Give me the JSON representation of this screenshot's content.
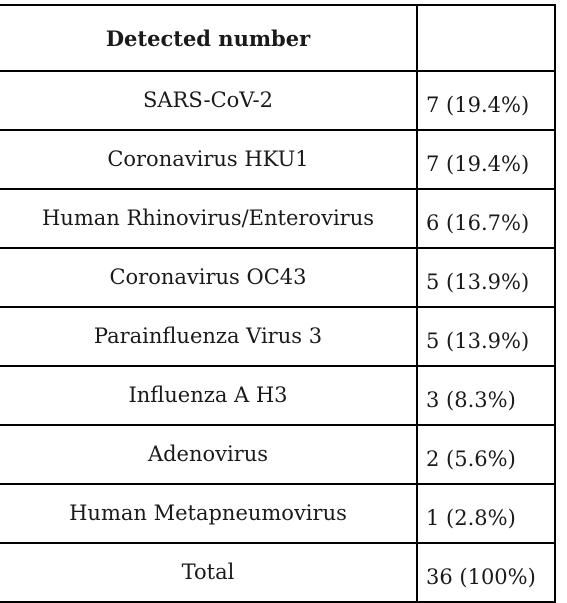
{
  "table": {
    "header": {
      "label": "Detected number",
      "value": ""
    },
    "rows": [
      {
        "name": "SARS-CoV-2",
        "count": "7 (19.4%)"
      },
      {
        "name": "Coronavirus HKU1",
        "count": "7 (19.4%)"
      },
      {
        "name": "Human Rhinovirus/Enterovirus",
        "count": "6 (16.7%)"
      },
      {
        "name": "Coronavirus OC43",
        "count": "5 (13.9%)"
      },
      {
        "name": "Parainfluenza Virus 3",
        "count": "5 (13.9%)"
      },
      {
        "name": "Influenza A H3",
        "count": "3 (8.3%)"
      },
      {
        "name": "Adenovirus",
        "count": "2 (5.6%)"
      },
      {
        "name": "Human Metapneumovirus",
        "count": "1 (2.8%)"
      },
      {
        "name": "Total",
        "count": "36 (100%)"
      }
    ]
  }
}
